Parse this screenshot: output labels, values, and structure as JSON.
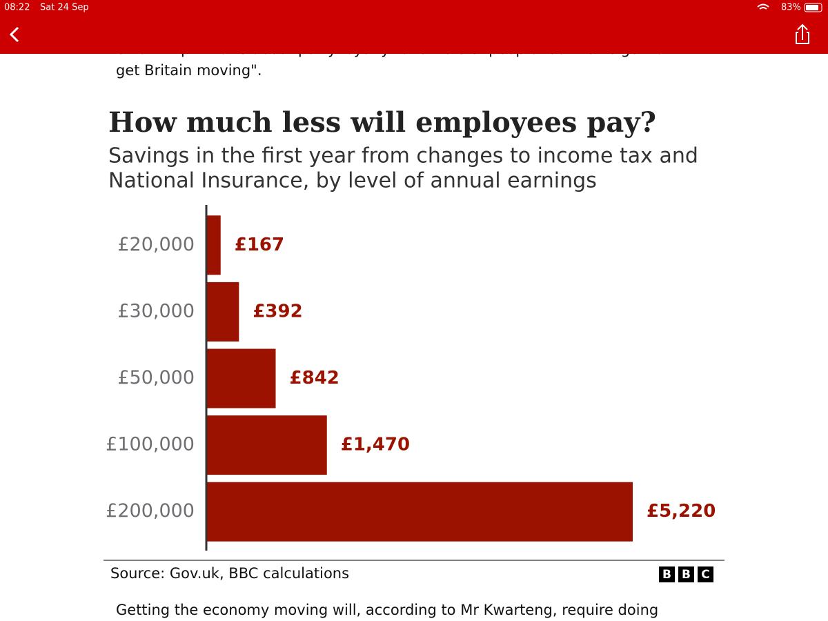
{
  "status_bar": {
    "time": "08:22",
    "date": "Sat 24 Sep",
    "battery": "83%"
  },
  "article": {
    "cut_line": "chief whip \"knows about party loyalty\" and \"lots of people feel we've got to",
    "line": "get Britain moving\".",
    "next_paragraph": "Getting the economy moving will, according to Mr Kwarteng, require doing"
  },
  "chart_data": {
    "type": "barh",
    "title": "How much less will employees pay?",
    "subtitle": [
      "Savings in the first year from changes to income tax and",
      "National Insurance, by level of annual earnings"
    ],
    "categories": [
      "£20,000",
      "£30,000",
      "£50,000",
      "£100,000",
      "£200,000"
    ],
    "values": [
      167,
      392,
      842,
      1470,
      5220
    ],
    "value_labels": [
      "£167",
      "£392",
      "£842",
      "£1,470",
      "£5,220"
    ],
    "color": "#9b1300",
    "source": "Source: Gov.uk, BBC calculations",
    "logo": [
      "B",
      "B",
      "C"
    ]
  }
}
